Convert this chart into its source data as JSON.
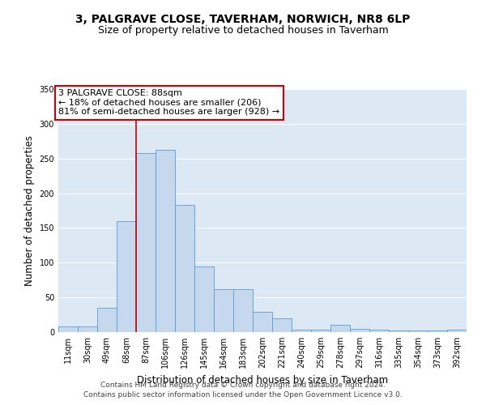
{
  "title": "3, PALGRAVE CLOSE, TAVERHAM, NORWICH, NR8 6LP",
  "subtitle": "Size of property relative to detached houses in Taverham",
  "xlabel": "Distribution of detached houses by size in Taverham",
  "ylabel": "Number of detached properties",
  "categories": [
    "11sqm",
    "30sqm",
    "49sqm",
    "68sqm",
    "87sqm",
    "106sqm",
    "126sqm",
    "145sqm",
    "164sqm",
    "183sqm",
    "202sqm",
    "221sqm",
    "240sqm",
    "259sqm",
    "278sqm",
    "297sqm",
    "316sqm",
    "335sqm",
    "354sqm",
    "373sqm",
    "392sqm"
  ],
  "values": [
    8,
    8,
    35,
    160,
    258,
    262,
    183,
    95,
    62,
    62,
    29,
    20,
    4,
    4,
    10,
    5,
    3,
    2,
    2,
    2,
    3
  ],
  "bar_color": "#c5d8ed",
  "bar_edge_color": "#5b9bd5",
  "vline_index": 4,
  "vline_color": "#cc0000",
  "annotation_text": "3 PALGRAVE CLOSE: 88sqm\n← 18% of detached houses are smaller (206)\n81% of semi-detached houses are larger (928) →",
  "annotation_box_facecolor": "#ffffff",
  "annotation_box_edgecolor": "#cc0000",
  "ylim": [
    0,
    350
  ],
  "yticks": [
    0,
    50,
    100,
    150,
    200,
    250,
    300,
    350
  ],
  "bg_color": "#dce9f5",
  "footer_line1": "Contains HM Land Registry data © Crown copyright and database right 2024.",
  "footer_line2": "Contains public sector information licensed under the Open Government Licence v3.0.",
  "title_fontsize": 10,
  "subtitle_fontsize": 9,
  "axis_label_fontsize": 8.5,
  "tick_fontsize": 7,
  "annotation_fontsize": 8,
  "footer_fontsize": 6.5
}
